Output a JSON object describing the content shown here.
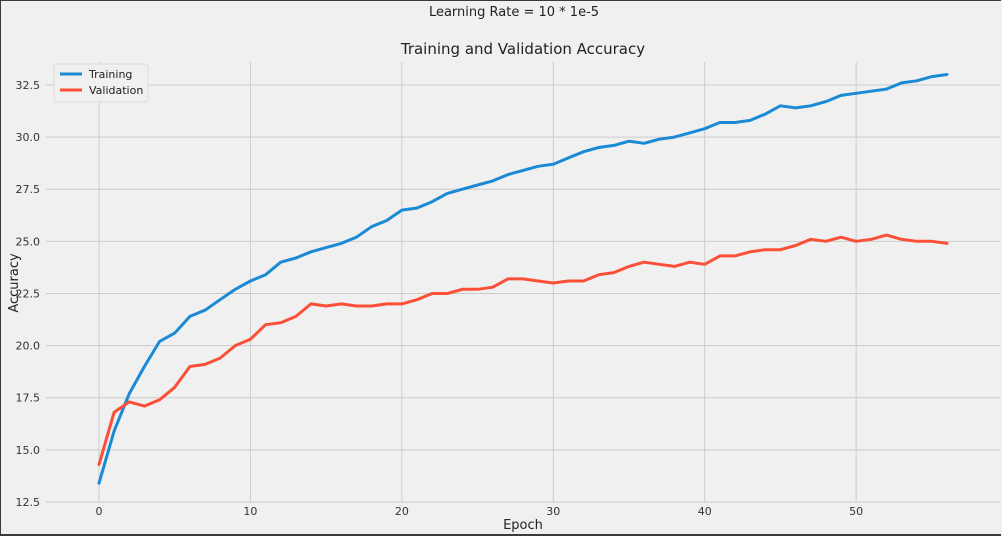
{
  "suptitle": "Learning Rate = 10 * 1e-5",
  "chart_data": {
    "type": "line",
    "title": "Training and Validation Accuracy",
    "xlabel": "Epoch",
    "ylabel": "Accuracy",
    "xlim": [
      -3.5,
      59.5
    ],
    "ylim": [
      12.5,
      33.6
    ],
    "xticks": [
      0,
      10,
      20,
      30,
      40,
      50
    ],
    "yticks": [
      12.5,
      15.0,
      17.5,
      20.0,
      22.5,
      25.0,
      27.5,
      30.0,
      32.5
    ],
    "ytick_labels": [
      "12.5",
      "15.0",
      "17.5",
      "20.0",
      "22.5",
      "25.0",
      "27.5",
      "30.0",
      "32.5"
    ],
    "grid": true,
    "legend": "top-left",
    "x": [
      0,
      1,
      2,
      3,
      4,
      5,
      6,
      7,
      8,
      9,
      10,
      11,
      12,
      13,
      14,
      15,
      16,
      17,
      18,
      19,
      20,
      21,
      22,
      23,
      24,
      25,
      26,
      27,
      28,
      29,
      30,
      31,
      32,
      33,
      34,
      35,
      36,
      37,
      38,
      39,
      40,
      41,
      42,
      43,
      44,
      45,
      46,
      47,
      48,
      49,
      50,
      51,
      52,
      53,
      54,
      55,
      56
    ],
    "series": [
      {
        "name": "Training",
        "color": "#1a8ad4",
        "values": [
          13.4,
          15.9,
          17.7,
          19.0,
          20.2,
          20.6,
          21.4,
          21.7,
          22.2,
          22.7,
          23.1,
          23.4,
          24.0,
          24.2,
          24.5,
          24.7,
          24.9,
          25.2,
          25.7,
          26.0,
          26.5,
          26.6,
          26.9,
          27.3,
          27.5,
          27.7,
          27.9,
          28.2,
          28.4,
          28.6,
          28.7,
          29.0,
          29.3,
          29.5,
          29.6,
          29.8,
          29.7,
          29.9,
          30.0,
          30.2,
          30.4,
          30.7,
          30.7,
          30.8,
          31.1,
          31.5,
          31.4,
          31.5,
          31.7,
          32.0,
          32.1,
          32.2,
          32.3,
          32.6,
          32.7,
          32.9,
          33.0
        ]
      },
      {
        "name": "Validation",
        "color": "#fb4f38",
        "values": [
          14.3,
          16.8,
          17.3,
          17.1,
          17.4,
          18.0,
          19.0,
          19.1,
          19.4,
          20.0,
          20.3,
          21.0,
          21.1,
          21.4,
          22.0,
          21.9,
          22.0,
          21.9,
          21.9,
          22.0,
          22.0,
          22.2,
          22.5,
          22.5,
          22.7,
          22.7,
          22.8,
          23.2,
          23.2,
          23.1,
          23.0,
          23.1,
          23.1,
          23.4,
          23.5,
          23.8,
          24.0,
          23.9,
          23.8,
          24.0,
          23.9,
          24.3,
          24.3,
          24.5,
          24.6,
          24.6,
          24.8,
          25.1,
          25.0,
          25.2,
          25.0,
          25.1,
          25.3,
          25.1,
          25.0,
          25.0,
          24.9
        ]
      }
    ]
  }
}
